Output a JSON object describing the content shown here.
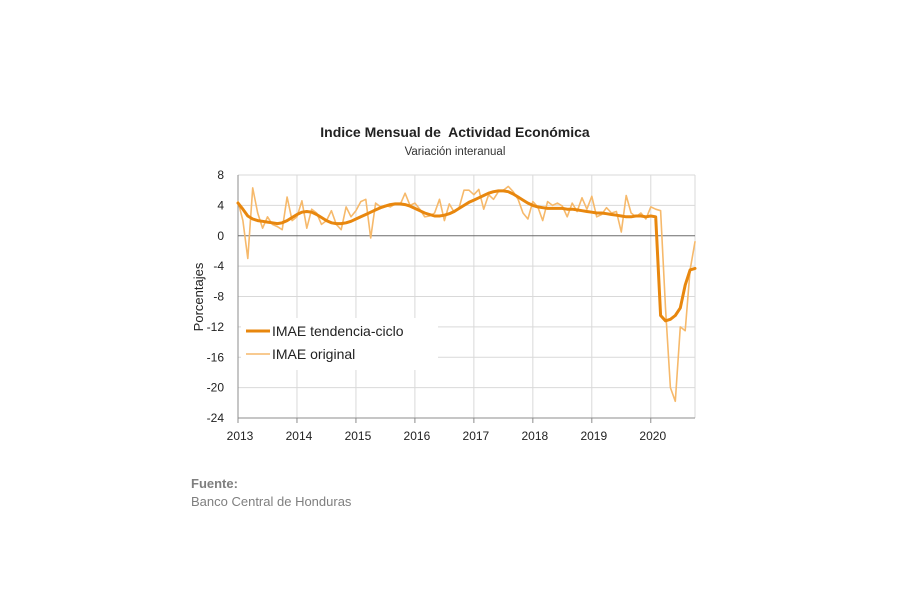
{
  "chart_data": {
    "type": "line",
    "title": "Indice Mensual de  Actividad Económica",
    "subtitle": "Variación interanual",
    "ylabel": "Porcentajes",
    "xlabel": "",
    "ylim": [
      -24,
      8
    ],
    "yticks": [
      8,
      4,
      0,
      -4,
      -8,
      -12,
      -16,
      -20,
      -24
    ],
    "xlim": [
      2013,
      2020.75
    ],
    "xticks": [
      2013,
      2014,
      2015,
      2016,
      2017,
      2018,
      2019,
      2020
    ],
    "grid": true,
    "legend_position": "bottom-left",
    "series": [
      {
        "name": "IMAE tendencia-ciclo",
        "color": "#e8870e",
        "x": [
          2013,
          2013.0833,
          2013.1667,
          2013.25,
          2013.3333,
          2013.4167,
          2013.5,
          2013.5833,
          2013.6667,
          2013.75,
          2013.8333,
          2013.9167,
          2014,
          2014.0833,
          2014.1667,
          2014.25,
          2014.3333,
          2014.4167,
          2014.5,
          2014.5833,
          2014.6667,
          2014.75,
          2014.8333,
          2014.9167,
          2015,
          2015.0833,
          2015.1667,
          2015.25,
          2015.3333,
          2015.4167,
          2015.5,
          2015.5833,
          2015.6667,
          2015.75,
          2015.8333,
          2015.9167,
          2016,
          2016.0833,
          2016.1667,
          2016.25,
          2016.3333,
          2016.4167,
          2016.5,
          2016.5833,
          2016.6667,
          2016.75,
          2016.8333,
          2016.9167,
          2017,
          2017.0833,
          2017.1667,
          2017.25,
          2017.3333,
          2017.4167,
          2017.5,
          2017.5833,
          2017.6667,
          2017.75,
          2017.8333,
          2017.9167,
          2018,
          2018.0833,
          2018.1667,
          2018.25,
          2018.3333,
          2018.4167,
          2018.5,
          2018.5833,
          2018.6667,
          2018.75,
          2018.8333,
          2018.9167,
          2019,
          2019.0833,
          2019.1667,
          2019.25,
          2019.3333,
          2019.4167,
          2019.5,
          2019.5833,
          2019.6667,
          2019.75,
          2019.8333,
          2019.9167,
          2020,
          2020.0833,
          2020.1667,
          2020.25,
          2020.3333,
          2020.4167,
          2020.5,
          2020.5833,
          2020.6667,
          2020.75
        ],
        "values": [
          4.3,
          3.5,
          2.6,
          2.2,
          2.0,
          1.9,
          1.8,
          1.7,
          1.6,
          1.7,
          2.0,
          2.4,
          2.8,
          3.1,
          3.2,
          3.1,
          2.8,
          2.4,
          2.0,
          1.7,
          1.6,
          1.6,
          1.7,
          1.9,
          2.2,
          2.5,
          2.8,
          3.1,
          3.4,
          3.7,
          3.9,
          4.1,
          4.2,
          4.2,
          4.1,
          3.9,
          3.6,
          3.3,
          3.0,
          2.8,
          2.6,
          2.6,
          2.7,
          2.9,
          3.2,
          3.6,
          4.0,
          4.4,
          4.7,
          5.0,
          5.3,
          5.6,
          5.8,
          5.9,
          5.9,
          5.8,
          5.5,
          5.1,
          4.7,
          4.3,
          4.0,
          3.8,
          3.7,
          3.6,
          3.6,
          3.6,
          3.6,
          3.5,
          3.5,
          3.4,
          3.3,
          3.2,
          3.1,
          3.0,
          3.0,
          2.9,
          2.8,
          2.7,
          2.6,
          2.5,
          2.5,
          2.6,
          2.6,
          2.5,
          2.6,
          2.5,
          -10.5,
          -11.2,
          -11.0,
          -10.5,
          -9.5,
          -6.5,
          -4.5,
          -4.3
        ]
      },
      {
        "name": "IMAE original",
        "color": "#f6b96b",
        "x": [
          2013,
          2013.0833,
          2013.1667,
          2013.25,
          2013.3333,
          2013.4167,
          2013.5,
          2013.5833,
          2013.6667,
          2013.75,
          2013.8333,
          2013.9167,
          2014,
          2014.0833,
          2014.1667,
          2014.25,
          2014.3333,
          2014.4167,
          2014.5,
          2014.5833,
          2014.6667,
          2014.75,
          2014.8333,
          2014.9167,
          2015,
          2015.0833,
          2015.1667,
          2015.25,
          2015.3333,
          2015.4167,
          2015.5,
          2015.5833,
          2015.6667,
          2015.75,
          2015.8333,
          2015.9167,
          2016,
          2016.0833,
          2016.1667,
          2016.25,
          2016.3333,
          2016.4167,
          2016.5,
          2016.5833,
          2016.6667,
          2016.75,
          2016.8333,
          2016.9167,
          2017,
          2017.0833,
          2017.1667,
          2017.25,
          2017.3333,
          2017.4167,
          2017.5,
          2017.5833,
          2017.6667,
          2017.75,
          2017.8333,
          2017.9167,
          2018,
          2018.0833,
          2018.1667,
          2018.25,
          2018.3333,
          2018.4167,
          2018.5,
          2018.5833,
          2018.6667,
          2018.75,
          2018.8333,
          2018.9167,
          2019,
          2019.0833,
          2019.1667,
          2019.25,
          2019.3333,
          2019.4167,
          2019.5,
          2019.5833,
          2019.6667,
          2019.75,
          2019.8333,
          2019.9167,
          2020,
          2020.0833,
          2020.1667,
          2020.25,
          2020.3333,
          2020.4167,
          2020.5,
          2020.5833,
          2020.6667,
          2020.75
        ],
        "values": [
          4.5,
          2.0,
          -3.0,
          6.3,
          3.0,
          1.0,
          2.5,
          1.5,
          1.2,
          0.8,
          5.1,
          2.0,
          2.5,
          4.6,
          1.0,
          3.5,
          3.0,
          1.5,
          2.0,
          3.3,
          1.5,
          0.8,
          3.8,
          2.5,
          3.3,
          4.5,
          4.8,
          -0.3,
          4.3,
          3.8,
          4.0,
          3.8,
          4.2,
          4.1,
          5.6,
          4.0,
          4.3,
          3.5,
          2.5,
          2.6,
          3.0,
          4.8,
          2.0,
          4.2,
          3.1,
          3.7,
          6.0,
          6.0,
          5.4,
          6.1,
          3.5,
          5.4,
          4.8,
          5.8,
          6.0,
          6.5,
          5.8,
          4.8,
          3.0,
          2.2,
          4.5,
          3.8,
          2.0,
          4.5,
          4.0,
          4.3,
          3.9,
          2.5,
          4.3,
          3.2,
          5.0,
          3.5,
          5.2,
          2.5,
          2.8,
          3.7,
          3.0,
          3.2,
          0.5,
          5.3,
          3.0,
          2.5,
          3.0,
          2.2,
          3.8,
          3.5,
          3.3,
          -9.5,
          -20.0,
          -21.8,
          -12.0,
          -12.5,
          -4.5,
          -0.8
        ]
      }
    ]
  },
  "source": {
    "label": "Fuente:",
    "text": "Banco Central de Honduras"
  },
  "colors": {
    "trend": "#e8870e",
    "original": "#f6b96b",
    "grid": "#d9d9d9",
    "axis": "#8c8c8c"
  }
}
